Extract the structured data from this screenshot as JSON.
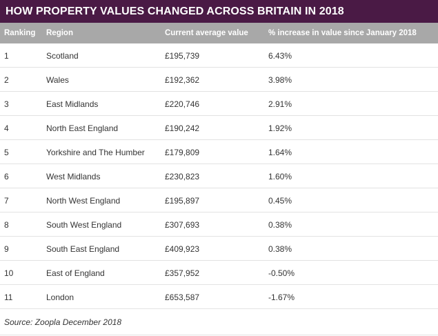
{
  "chart_data": {
    "type": "table",
    "title": "HOW PROPERTY VALUES CHANGED ACROSS BRITAIN IN 2018",
    "columns": [
      "Ranking",
      "Region",
      "Current average value",
      "% increase in value since January 2018"
    ],
    "rows": [
      [
        "1",
        "Scotland",
        "£195,739",
        "6.43%"
      ],
      [
        "2",
        "Wales",
        "£192,362",
        "3.98%"
      ],
      [
        "3",
        "East Midlands",
        "£220,746",
        "2.91%"
      ],
      [
        "4",
        "North East England",
        "£190,242",
        "1.92%"
      ],
      [
        "5",
        "Yorkshire and The Humber",
        "£179,809",
        "1.64%"
      ],
      [
        "6",
        "West Midlands",
        "£230,823",
        "1.60%"
      ],
      [
        "7",
        "North West England",
        "£195,897",
        "0.45%"
      ],
      [
        "8",
        "South West England",
        "£307,693",
        "0.38%"
      ],
      [
        "9",
        "South East England",
        "£409,923",
        "0.38%"
      ],
      [
        "10",
        "East of England",
        "£357,952",
        "-0.50%"
      ],
      [
        "11",
        "London",
        "£653,587",
        "-1.67%"
      ]
    ],
    "source": "Source: Zoopla December 2018"
  },
  "colors": {
    "title_bar": "#4a1a45",
    "header_bar": "#a8a8a8",
    "row_divider": "#e2e2e2"
  }
}
